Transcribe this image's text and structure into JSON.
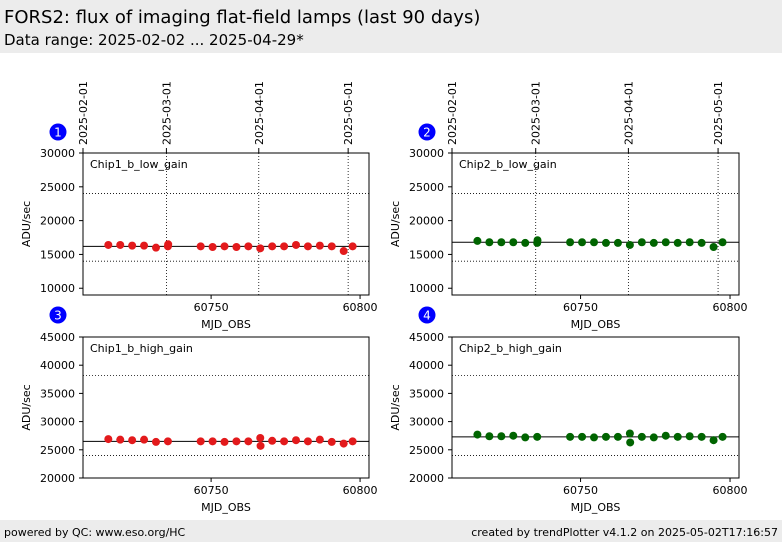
{
  "header": {
    "title": "FORS2: flux of imaging flat-field lamps (last 90 days)",
    "subtitle": "Data range: 2025-02-02 ... 2025-04-29*"
  },
  "footer": {
    "left": "powered by QC: www.eso.org/HC",
    "right": "created by trendPlotter v4.1.2 on 2025-05-02T17:16:57"
  },
  "chart_data": [
    {
      "type": "scatter",
      "panel_number": "1",
      "label": "Chip1_b_low_gain",
      "xlabel": "MJD_OBS",
      "ylabel": "ADU/sec",
      "xlim": [
        60707,
        60803
      ],
      "ylim": [
        9000,
        30000
      ],
      "yticks": [
        10000,
        15000,
        20000,
        25000,
        30000
      ],
      "xticks": [
        60750,
        60800
      ],
      "date_ticks": [
        {
          "label": "2025-02-01",
          "mjd": 60707
        },
        {
          "label": "2025-03-01",
          "mjd": 60735
        },
        {
          "label": "2025-04-01",
          "mjd": 60766
        },
        {
          "label": "2025-05-01",
          "mjd": 60796
        }
      ],
      "reference": 16200,
      "upper": 24000,
      "lower": 14000,
      "color": "#e31a1c",
      "x": [
        60715.5,
        60719.5,
        60723.5,
        60727.5,
        60731.5,
        60735.5,
        60735.6,
        60746.5,
        60750.5,
        60754.5,
        60758.5,
        60762.5,
        60766.5,
        60770.5,
        60774.5,
        60778.5,
        60782.5,
        60786.5,
        60790.5,
        60794.5,
        60797.5
      ],
      "y": [
        16400,
        16400,
        16300,
        16300,
        16000,
        16200,
        16500,
        16200,
        16100,
        16200,
        16100,
        16200,
        15900,
        16200,
        16200,
        16400,
        16200,
        16300,
        16200,
        15500,
        16200
      ]
    },
    {
      "type": "scatter",
      "panel_number": "2",
      "label": "Chip2_b_low_gain",
      "xlabel": "MJD_OBS",
      "ylabel": "ADU/sec",
      "xlim": [
        60707,
        60803
      ],
      "ylim": [
        9000,
        30000
      ],
      "yticks": [
        10000,
        15000,
        20000,
        25000,
        30000
      ],
      "xticks": [
        60750,
        60800
      ],
      "date_ticks": [
        {
          "label": "2025-02-01",
          "mjd": 60707
        },
        {
          "label": "2025-03-01",
          "mjd": 60735
        },
        {
          "label": "2025-04-01",
          "mjd": 60766
        },
        {
          "label": "2025-05-01",
          "mjd": 60796
        }
      ],
      "reference": 16800,
      "upper": 24000,
      "lower": 14000,
      "color": "#006400",
      "x": [
        60715.5,
        60719.5,
        60723.5,
        60727.5,
        60731.5,
        60735.5,
        60735.6,
        60746.5,
        60750.5,
        60754.5,
        60758.5,
        60762.5,
        60766.5,
        60770.5,
        60774.5,
        60778.5,
        60782.5,
        60786.5,
        60790.5,
        60794.5,
        60797.5
      ],
      "y": [
        17000,
        16800,
        16800,
        16800,
        16700,
        16700,
        17100,
        16800,
        16800,
        16800,
        16700,
        16700,
        16400,
        16800,
        16700,
        16800,
        16700,
        16800,
        16700,
        16100,
        16800
      ]
    },
    {
      "type": "scatter",
      "panel_number": "3",
      "label": "Chip1_b_high_gain",
      "xlabel": "MJD_OBS",
      "ylabel": "ADU/sec",
      "xlim": [
        60707,
        60803
      ],
      "ylim": [
        20000,
        45000
      ],
      "yticks": [
        20000,
        25000,
        30000,
        35000,
        40000,
        45000
      ],
      "xticks": [
        60750,
        60800
      ],
      "reference": 26500,
      "upper": 38200,
      "lower": 24000,
      "color": "#e31a1c",
      "x": [
        60715.5,
        60719.5,
        60723.5,
        60727.5,
        60731.5,
        60735.5,
        60746.5,
        60750.5,
        60754.5,
        60758.5,
        60762.5,
        60766.5,
        60766.6,
        60770.5,
        60774.5,
        60778.5,
        60782.5,
        60786.5,
        60790.5,
        60794.5,
        60797.5
      ],
      "y": [
        26900,
        26800,
        26700,
        26800,
        26400,
        26500,
        26500,
        26500,
        26400,
        26500,
        26500,
        27100,
        25700,
        26600,
        26500,
        26700,
        26500,
        26800,
        26400,
        26100,
        26500
      ]
    },
    {
      "type": "scatter",
      "panel_number": "4",
      "label": "Chip2_b_high_gain",
      "xlabel": "MJD_OBS",
      "ylabel": "ADU/sec",
      "xlim": [
        60707,
        60803
      ],
      "ylim": [
        20000,
        45000
      ],
      "yticks": [
        20000,
        25000,
        30000,
        35000,
        40000,
        45000
      ],
      "xticks": [
        60750,
        60800
      ],
      "reference": 27300,
      "upper": 38200,
      "lower": 24000,
      "color": "#006400",
      "x": [
        60715.5,
        60719.5,
        60723.5,
        60727.5,
        60731.5,
        60735.5,
        60746.5,
        60750.5,
        60754.5,
        60758.5,
        60762.5,
        60766.5,
        60766.6,
        60770.5,
        60774.5,
        60778.5,
        60782.5,
        60786.5,
        60790.5,
        60794.5,
        60797.5
      ],
      "y": [
        27700,
        27400,
        27400,
        27500,
        27200,
        27300,
        27300,
        27300,
        27200,
        27300,
        27300,
        27900,
        26300,
        27300,
        27200,
        27500,
        27300,
        27400,
        27300,
        26700,
        27300
      ]
    }
  ]
}
